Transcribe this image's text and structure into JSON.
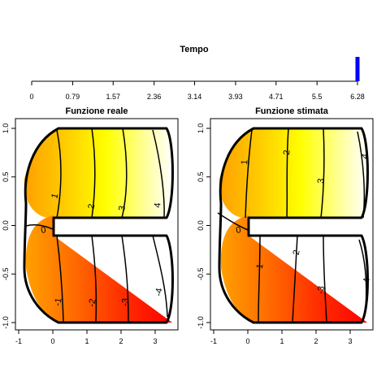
{
  "slider": {
    "title": "Tempo",
    "ticks": [
      "0",
      "0.79",
      "1.57",
      "2.36",
      "3.14",
      "3.93",
      "4.71",
      "5.5",
      "6.28"
    ],
    "range": [
      0,
      6.28
    ],
    "value": 6.28,
    "marker_color": "#0000ff"
  },
  "chart_data": [
    {
      "type": "heatmap",
      "title": "Funzione reale",
      "xlabel": "",
      "ylabel": "",
      "xlim": [
        -1,
        3.5
      ],
      "ylim": [
        -1,
        1
      ],
      "x_ticks": [
        "-1",
        "0",
        "1",
        "2",
        "3"
      ],
      "y_ticks": [
        "-1.0",
        "-0.5",
        "0.0",
        "0.5",
        "1.0"
      ],
      "colormap": "heat",
      "contours": [
        {
          "label": "0",
          "level": 0
        },
        {
          "label": "1",
          "level": 1
        },
        {
          "label": "2",
          "level": 2
        },
        {
          "label": "3",
          "level": 3
        },
        {
          "label": "4",
          "level": 4
        },
        {
          "label": "-1",
          "level": -1
        },
        {
          "label": "-2",
          "level": -2
        },
        {
          "label": "-3",
          "level": -3
        },
        {
          "label": "-4",
          "level": -4
        }
      ]
    },
    {
      "type": "heatmap",
      "title": "Funzione stimata",
      "xlabel": "",
      "ylabel": "",
      "xlim": [
        -1,
        3.5
      ],
      "ylim": [
        -1,
        1
      ],
      "x_ticks": [
        "-1",
        "0",
        "1",
        "2",
        "3"
      ],
      "y_ticks": [
        "-1.0",
        "-0.5",
        "0.0",
        "0.5",
        "1.0"
      ],
      "colormap": "heat",
      "contours": [
        {
          "label": "0",
          "level": 0
        },
        {
          "label": "1",
          "level": 1
        },
        {
          "label": "2",
          "level": 2
        },
        {
          "label": "3",
          "level": 3
        },
        {
          "label": "4",
          "level": 4
        },
        {
          "label": "-1",
          "level": -1
        },
        {
          "label": "-2",
          "level": -2
        },
        {
          "label": "-3",
          "level": -3
        },
        {
          "label": "-4",
          "level": -4
        }
      ]
    }
  ]
}
